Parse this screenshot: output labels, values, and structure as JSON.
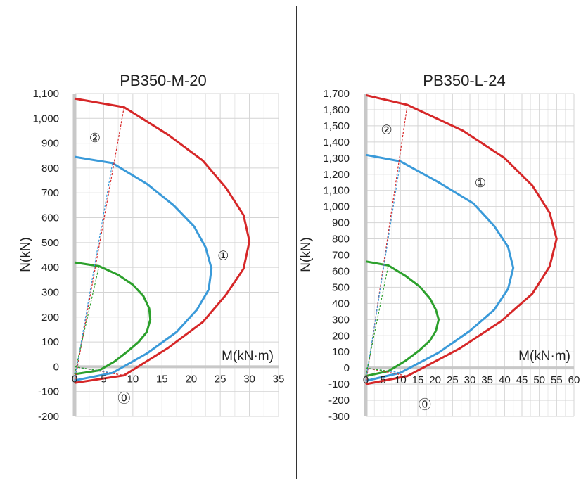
{
  "chart_data": [
    {
      "type": "line",
      "title": "PB350-M-20",
      "xlabel": "M(kN·m)",
      "ylabel": "N(kN)",
      "xlim": [
        0,
        35
      ],
      "ylim": [
        -200,
        1100
      ],
      "xticks": [
        0,
        5,
        10,
        15,
        20,
        25,
        30,
        35
      ],
      "yticks": [
        -200,
        -100,
        0,
        100,
        200,
        300,
        400,
        500,
        600,
        700,
        800,
        900,
        1000,
        1100
      ],
      "grid": true,
      "annotations": [
        {
          "text": "①",
          "x": 25.5,
          "y": 430
        },
        {
          "text": "②",
          "x": 3.5,
          "y": 905
        },
        {
          "text": "⓪",
          "x": 8.5,
          "y": -145
        }
      ],
      "series": [
        {
          "color": "#d62728",
          "style": "solid",
          "x": [
            0,
            8.5,
            16,
            22,
            26,
            29,
            30,
            29,
            26,
            22,
            16,
            8.5,
            0
          ],
          "y": [
            1080,
            1045,
            935,
            830,
            720,
            610,
            505,
            395,
            290,
            180,
            75,
            -35,
            -65
          ]
        },
        {
          "color": "#3a9ad9",
          "style": "solid",
          "x": [
            0,
            6.5,
            12.5,
            17,
            20.5,
            22.5,
            23.5,
            23,
            21,
            17.5,
            12.5,
            6.5,
            0
          ],
          "y": [
            845,
            820,
            735,
            650,
            565,
            480,
            395,
            310,
            230,
            140,
            55,
            -25,
            -55
          ]
        },
        {
          "color": "#2ca02c",
          "style": "solid",
          "x": [
            0,
            4.2,
            7.5,
            10,
            11.8,
            12.8,
            13,
            12.4,
            11,
            9,
            6.8,
            4.2,
            0
          ],
          "y": [
            420,
            405,
            370,
            330,
            285,
            235,
            190,
            140,
            100,
            60,
            20,
            -15,
            -30
          ]
        },
        {
          "color": "#d62728",
          "style": "dashed",
          "x": [
            0,
            8.5
          ],
          "y": [
            -65,
            1045
          ]
        },
        {
          "color": "#3a9ad9",
          "style": "dashed",
          "x": [
            0,
            6.5
          ],
          "y": [
            -55,
            820
          ]
        },
        {
          "color": "#2ca02c",
          "style": "dashed",
          "x": [
            0,
            4.2
          ],
          "y": [
            -30,
            405
          ]
        },
        {
          "color": "#d62728",
          "style": "dashed",
          "x": [
            0,
            8.5
          ],
          "y": [
            0,
            -35
          ]
        },
        {
          "color": "#3a9ad9",
          "style": "dashed",
          "x": [
            0,
            6.5
          ],
          "y": [
            0,
            -25
          ]
        },
        {
          "color": "#2ca02c",
          "style": "dashed",
          "x": [
            0,
            4.2
          ],
          "y": [
            0,
            -15
          ]
        }
      ]
    },
    {
      "type": "line",
      "title": "PB350-L-24",
      "xlabel": "M(kN·m)",
      "ylabel": "N(kN)",
      "xlim": [
        0,
        60
      ],
      "ylim": [
        -300,
        1700
      ],
      "xticks": [
        0,
        5,
        10,
        15,
        20,
        25,
        30,
        35,
        40,
        45,
        50,
        55,
        60
      ],
      "yticks": [
        -300,
        -200,
        -100,
        0,
        100,
        200,
        300,
        400,
        500,
        600,
        700,
        800,
        900,
        1000,
        1100,
        1200,
        1300,
        1400,
        1500,
        1600,
        1700
      ],
      "grid": true,
      "annotations": [
        {
          "text": "①",
          "x": 33,
          "y": 1120
        },
        {
          "text": "②",
          "x": 6,
          "y": 1450
        },
        {
          "text": "⓪",
          "x": 17,
          "y": -255
        }
      ],
      "series": [
        {
          "color": "#d62728",
          "style": "solid",
          "x": [
            0,
            12,
            28,
            40,
            48,
            53,
            55,
            53,
            48,
            39,
            27,
            12,
            0
          ],
          "y": [
            1690,
            1630,
            1470,
            1300,
            1130,
            960,
            800,
            630,
            460,
            290,
            120,
            -50,
            -100
          ]
        },
        {
          "color": "#3a9ad9",
          "style": "solid",
          "x": [
            0,
            10,
            21,
            31,
            37,
            41,
            42.5,
            41,
            37,
            30,
            21,
            10,
            0
          ],
          "y": [
            1320,
            1280,
            1150,
            1020,
            880,
            750,
            620,
            490,
            360,
            230,
            95,
            -30,
            -80
          ]
        },
        {
          "color": "#2ca02c",
          "style": "solid",
          "x": [
            0,
            6.5,
            11.5,
            15.5,
            18.5,
            20.2,
            21,
            20.2,
            18.5,
            15.5,
            11.5,
            6.5,
            0
          ],
          "y": [
            660,
            635,
            570,
            505,
            430,
            360,
            300,
            230,
            170,
            110,
            45,
            -20,
            -50
          ]
        },
        {
          "color": "#d62728",
          "style": "dashed",
          "x": [
            0,
            12
          ],
          "y": [
            -100,
            1630
          ]
        },
        {
          "color": "#3a9ad9",
          "style": "dashed",
          "x": [
            0,
            10
          ],
          "y": [
            -80,
            1280
          ]
        },
        {
          "color": "#2ca02c",
          "style": "dashed",
          "x": [
            0,
            6.5
          ],
          "y": [
            -50,
            635
          ]
        },
        {
          "color": "#d62728",
          "style": "dashed",
          "x": [
            0,
            12
          ],
          "y": [
            0,
            -50
          ]
        },
        {
          "color": "#3a9ad9",
          "style": "dashed",
          "x": [
            0,
            10
          ],
          "y": [
            0,
            -30
          ]
        },
        {
          "color": "#2ca02c",
          "style": "dashed",
          "x": [
            0,
            6.5
          ],
          "y": [
            0,
            -20
          ]
        }
      ]
    }
  ]
}
